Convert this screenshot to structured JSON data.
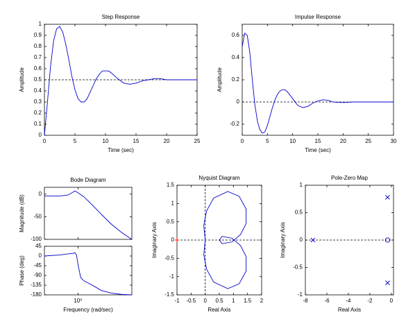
{
  "chart_data": [
    {
      "type": "line",
      "title": "Step Response",
      "xlabel": "Time (sec)",
      "ylabel": "Amplitude",
      "color": "#0000cc",
      "x": [
        0,
        0.5,
        1,
        1.5,
        2,
        2.5,
        3,
        3.5,
        4,
        4.5,
        5,
        5.5,
        6,
        6.5,
        7,
        7.5,
        8,
        8.5,
        9,
        9.5,
        10,
        10.5,
        11,
        12,
        13,
        14,
        15,
        16,
        17,
        18,
        19,
        20,
        22,
        25
      ],
      "values": [
        0,
        0.3,
        0.62,
        0.85,
        0.96,
        0.98,
        0.93,
        0.82,
        0.68,
        0.53,
        0.41,
        0.33,
        0.3,
        0.3,
        0.33,
        0.39,
        0.45,
        0.51,
        0.55,
        0.58,
        0.58,
        0.58,
        0.56,
        0.51,
        0.47,
        0.46,
        0.47,
        0.49,
        0.5,
        0.51,
        0.51,
        0.5,
        0.5,
        0.5
      ],
      "hline": 0.5,
      "xlim": [
        0,
        25
      ],
      "ylim": [
        0,
        1
      ],
      "xticks": [
        0,
        5,
        10,
        15,
        20,
        25
      ],
      "yticks": [
        0,
        0.1,
        0.2,
        0.3,
        0.4,
        0.5,
        0.6,
        0.7,
        0.8,
        0.9,
        1
      ]
    },
    {
      "type": "line",
      "title": "Impulse Response",
      "xlabel": "Time (sec)",
      "ylabel": "Amplitude",
      "color": "#0000cc",
      "x": [
        0,
        0.5,
        1,
        1.5,
        2,
        2.5,
        3,
        3.5,
        4,
        4.5,
        5,
        5.5,
        6,
        6.5,
        7,
        7.5,
        8,
        8.5,
        9,
        10,
        11,
        12,
        13,
        14,
        15,
        16,
        17,
        18,
        20,
        22,
        30
      ],
      "values": [
        0.5,
        0.62,
        0.6,
        0.45,
        0.2,
        -0.02,
        -0.17,
        -0.25,
        -0.28,
        -0.27,
        -0.21,
        -0.13,
        -0.05,
        0.02,
        0.07,
        0.1,
        0.11,
        0.11,
        0.09,
        0.03,
        -0.03,
        -0.05,
        -0.04,
        -0.01,
        0.01,
        0.02,
        0.015,
        0,
        -0.005,
        0,
        0
      ],
      "hline": 0,
      "xlim": [
        0,
        30
      ],
      "ylim": [
        -0.3,
        0.7
      ],
      "xticks": [
        0,
        5,
        10,
        15,
        20,
        25,
        30
      ],
      "yticks": [
        -0.2,
        0,
        0.2,
        0.4,
        0.6
      ]
    },
    {
      "type": "bode",
      "title": "Bode Diagram",
      "xlabel": "Frequency  (rad/sec)",
      "color": "#0000cc",
      "log_x": true,
      "x": [
        0.1,
        0.3,
        0.5,
        0.7,
        0.8,
        0.9,
        1,
        1.2,
        1.5,
        2,
        3,
        5,
        10,
        20,
        40
      ],
      "xlim": [
        0.1,
        40
      ],
      "xticks": [
        {
          "value": 1,
          "label": "10⁰"
        }
      ],
      "magnitude": {
        "ylabel": "Magnitude (dB)",
        "ylim": [
          -100,
          15
        ],
        "yticks": [
          -100,
          -50,
          0
        ],
        "values": [
          -4,
          -4,
          -2,
          4,
          7,
          5,
          3,
          -1,
          -6,
          -15,
          -28,
          -45,
          -67,
          -85,
          -100
        ]
      },
      "phase": {
        "ylabel": "Phase (deg)",
        "ylim": [
          -180,
          45
        ],
        "yticks": [
          -180,
          -135,
          -90,
          -45,
          0,
          45
        ],
        "values": [
          0,
          5,
          10,
          12,
          15,
          5,
          -40,
          -100,
          -115,
          -125,
          -140,
          -160,
          -172,
          -178,
          -180
        ]
      }
    },
    {
      "type": "line",
      "title": "Nyquist Diagram",
      "xlabel": "Real Axis",
      "ylabel": "Imaginary Axis",
      "color": "#0000cc",
      "x": [
        0,
        -0.05,
        0.05,
        0.3,
        0.8,
        1.2,
        1.45,
        1.45,
        1.25,
        0.95,
        0.6,
        0.5,
        0.6,
        0.95,
        1.25,
        1.45,
        1.45,
        1.2,
        0.8,
        0.3,
        0.05,
        -0.05,
        0
      ],
      "values": [
        0,
        0.4,
        0.8,
        1.15,
        1.33,
        1.2,
        0.85,
        0.45,
        0.15,
        -0.05,
        -0.1,
        0,
        0.1,
        0.05,
        -0.15,
        -0.45,
        -0.85,
        -1.2,
        -1.33,
        -1.15,
        -0.8,
        -0.4,
        0
      ],
      "hline": 0,
      "vline": 0,
      "critical_point": {
        "x": -1,
        "y": 0,
        "color": "#ff0000"
      },
      "xlim": [
        -1,
        2
      ],
      "ylim": [
        -1.5,
        1.5
      ],
      "xticks": [
        -1,
        -0.5,
        0,
        0.5,
        1,
        1.5,
        2
      ],
      "yticks": [
        -1.5,
        -1,
        -0.5,
        0,
        0.5,
        1,
        1.5
      ]
    },
    {
      "type": "pole-zero",
      "title": "Pole-Zero Map",
      "xlabel": "Real Axis",
      "ylabel": "Imaginary Axis",
      "color": "#0000cc",
      "poles": {
        "x": [
          -7.3,
          -0.35,
          -0.35
        ],
        "y": [
          0,
          0.78,
          -0.78
        ]
      },
      "zeros": {
        "x": [
          -0.35
        ],
        "y": [
          0
        ]
      },
      "hline": 0,
      "xlim": [
        -8,
        0.2
      ],
      "ylim": [
        -1,
        1
      ],
      "xticks": [
        -8,
        -6,
        -4,
        -2,
        0
      ],
      "yticks": [
        -1,
        -0.5,
        0,
        0.5,
        1
      ]
    }
  ]
}
